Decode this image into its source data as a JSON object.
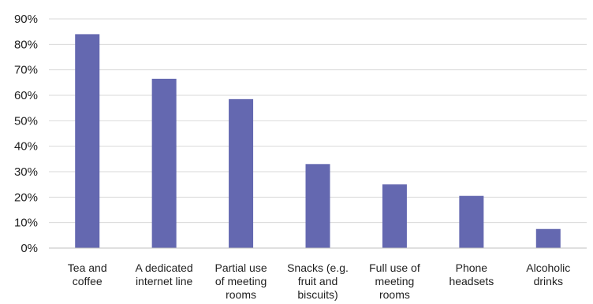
{
  "chart_data": {
    "type": "bar",
    "categories": [
      [
        "Tea and",
        "coffee"
      ],
      [
        "A dedicated",
        "internet line"
      ],
      [
        "Partial use",
        "of meeting",
        "rooms"
      ],
      [
        "Snacks (e.g.",
        "fruit and",
        "biscuits)"
      ],
      [
        "Full use of",
        "meeting",
        "rooms"
      ],
      [
        "Phone",
        "headsets"
      ],
      [
        "Alcoholic",
        "drinks"
      ]
    ],
    "values": [
      84,
      66.5,
      58.5,
      33,
      25,
      20.5,
      7.5
    ],
    "value_format": "percent",
    "ylim": [
      0,
      90
    ],
    "yticks": [
      0,
      10,
      20,
      30,
      40,
      50,
      60,
      70,
      80,
      90
    ],
    "ytick_labels": [
      "0%",
      "10%",
      "20%",
      "30%",
      "40%",
      "50%",
      "60%",
      "70%",
      "80%",
      "90%"
    ],
    "grid": true,
    "legend": "none",
    "colors": {
      "bar": "#6468b0",
      "grid": "#d9d9d9",
      "axis": "#bfbfbf"
    }
  }
}
